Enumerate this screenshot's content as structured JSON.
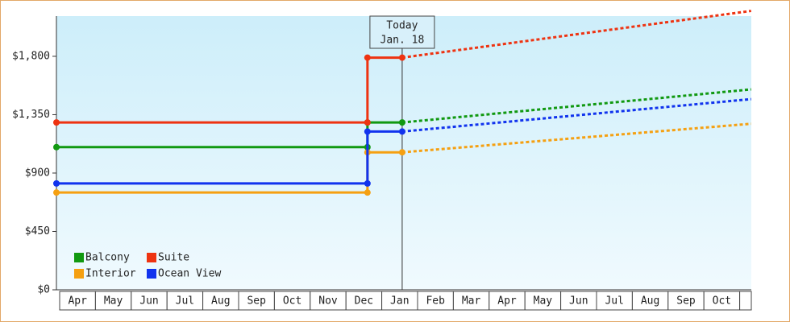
{
  "chart_data": {
    "type": "line",
    "categories": [
      "Apr",
      "May",
      "Jun",
      "Jul",
      "Aug",
      "Sep",
      "Oct",
      "Nov",
      "Dec",
      "Jan",
      "Feb",
      "Mar",
      "Apr",
      "May",
      "Jun",
      "Jul",
      "Aug",
      "Sep",
      "Oct"
    ],
    "x": [
      -0.09,
      8.6,
      8.6,
      9.57,
      19.32
    ],
    "xlim": [
      -0.09,
      19.32
    ],
    "ylim": [
      0,
      2110
    ],
    "yticks": [
      {
        "value": 0,
        "label": "$0"
      },
      {
        "value": 450,
        "label": "$450"
      },
      {
        "value": 900,
        "label": "$900"
      },
      {
        "value": 1350,
        "label": "$1,350"
      },
      {
        "value": 1800,
        "label": "$1,800"
      }
    ],
    "today": {
      "x": 9.57,
      "label": "Today",
      "date": "Jan. 18"
    },
    "legend": "lower left",
    "series": [
      {
        "name": "Balcony",
        "color": "#119911",
        "values": [
          1100,
          1100,
          1290,
          1290,
          1545
        ]
      },
      {
        "name": "Suite",
        "color": "#ee3311",
        "values": [
          1290,
          1290,
          1790,
          1790,
          2150
        ]
      },
      {
        "name": "Interior",
        "color": "#f5a011",
        "values": [
          750,
          750,
          1060,
          1060,
          1280
        ]
      },
      {
        "name": "Ocean View",
        "color": "#1133ee",
        "values": [
          820,
          820,
          1220,
          1220,
          1470
        ]
      }
    ]
  }
}
